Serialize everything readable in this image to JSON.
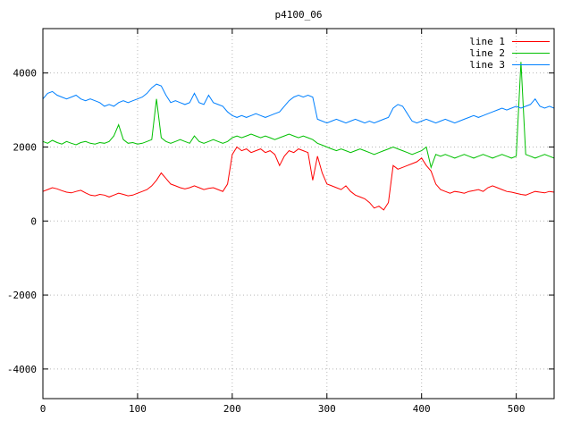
{
  "chart_data": {
    "type": "line",
    "title": "p4100_06",
    "xlabel": "",
    "ylabel": "",
    "xlim": [
      0,
      540
    ],
    "ylim": [
      -4800,
      5200
    ],
    "xticks": [
      0,
      100,
      200,
      300,
      400,
      500
    ],
    "yticks": [
      -4000,
      -2000,
      0,
      2000,
      4000
    ],
    "grid": true,
    "grid_style": "dotted",
    "legend_position": "top-right",
    "background_color": "#ffffff",
    "grid_color": "#b8b8b8",
    "axis_color": "#000000",
    "x": [
      0,
      5,
      10,
      15,
      20,
      25,
      30,
      35,
      40,
      45,
      50,
      55,
      60,
      65,
      70,
      75,
      80,
      85,
      90,
      95,
      100,
      105,
      110,
      115,
      120,
      125,
      130,
      135,
      140,
      145,
      150,
      155,
      160,
      165,
      170,
      175,
      180,
      185,
      190,
      195,
      200,
      205,
      210,
      215,
      220,
      225,
      230,
      235,
      240,
      245,
      250,
      255,
      260,
      265,
      270,
      275,
      280,
      285,
      290,
      295,
      300,
      305,
      310,
      315,
      320,
      325,
      330,
      335,
      340,
      345,
      350,
      355,
      360,
      365,
      370,
      375,
      380,
      385,
      390,
      395,
      400,
      405,
      410,
      415,
      420,
      425,
      430,
      435,
      440,
      445,
      450,
      455,
      460,
      465,
      470,
      475,
      480,
      485,
      490,
      495,
      500,
      505,
      510,
      515,
      520,
      525,
      530,
      535,
      540
    ],
    "series": [
      {
        "name": "line 1",
        "color": "#ff0000",
        "values": [
          800,
          850,
          900,
          870,
          820,
          780,
          760,
          800,
          830,
          760,
          700,
          680,
          720,
          700,
          650,
          700,
          750,
          720,
          680,
          700,
          750,
          800,
          850,
          950,
          1100,
          1300,
          1150,
          1000,
          950,
          900,
          870,
          900,
          950,
          900,
          850,
          880,
          900,
          850,
          800,
          1000,
          1800,
          2000,
          1900,
          1950,
          1850,
          1900,
          1950,
          1850,
          1900,
          1800,
          1500,
          1750,
          1900,
          1850,
          1950,
          1900,
          1850,
          1100,
          1750,
          1300,
          1000,
          950,
          900,
          850,
          950,
          800,
          700,
          650,
          600,
          500,
          350,
          400,
          300,
          500,
          1500,
          1400,
          1450,
          1500,
          1550,
          1600,
          1700,
          1500,
          1350,
          1000,
          850,
          800,
          750,
          800,
          780,
          750,
          800,
          820,
          850,
          800,
          900,
          950,
          900,
          850,
          800,
          780,
          750,
          720,
          700,
          750,
          800,
          780,
          760,
          800,
          780
        ]
      },
      {
        "name": "line 2",
        "color": "#00c000",
        "values": [
          2150,
          2100,
          2180,
          2120,
          2080,
          2150,
          2100,
          2060,
          2120,
          2150,
          2100,
          2080,
          2120,
          2100,
          2150,
          2300,
          2600,
          2200,
          2100,
          2120,
          2080,
          2100,
          2150,
          2200,
          3300,
          2250,
          2150,
          2100,
          2150,
          2200,
          2150,
          2100,
          2300,
          2150,
          2100,
          2150,
          2200,
          2150,
          2100,
          2150,
          2250,
          2300,
          2250,
          2300,
          2350,
          2300,
          2250,
          2300,
          2250,
          2200,
          2250,
          2300,
          2350,
          2300,
          2250,
          2300,
          2250,
          2200,
          2100,
          2050,
          2000,
          1950,
          1900,
          1950,
          1900,
          1850,
          1900,
          1950,
          1900,
          1850,
          1800,
          1850,
          1900,
          1950,
          2000,
          1950,
          1900,
          1850,
          1800,
          1850,
          1900,
          2000,
          1450,
          1800,
          1750,
          1800,
          1750,
          1700,
          1750,
          1800,
          1750,
          1700,
          1750,
          1800,
          1750,
          1700,
          1750,
          1800,
          1750,
          1700,
          1750,
          4300,
          1800,
          1750,
          1700,
          1750,
          1800,
          1750,
          1700
        ]
      },
      {
        "name": "line 3",
        "color": "#0080ff",
        "values": [
          3300,
          3450,
          3500,
          3400,
          3350,
          3300,
          3350,
          3400,
          3300,
          3250,
          3300,
          3250,
          3200,
          3100,
          3150,
          3100,
          3200,
          3250,
          3200,
          3250,
          3300,
          3350,
          3450,
          3600,
          3700,
          3650,
          3400,
          3200,
          3250,
          3200,
          3150,
          3200,
          3450,
          3200,
          3150,
          3400,
          3200,
          3150,
          3100,
          2950,
          2850,
          2800,
          2850,
          2800,
          2850,
          2900,
          2850,
          2800,
          2850,
          2900,
          2950,
          3100,
          3250,
          3350,
          3400,
          3350,
          3400,
          3350,
          2750,
          2700,
          2650,
          2700,
          2750,
          2700,
          2650,
          2700,
          2750,
          2700,
          2650,
          2700,
          2650,
          2700,
          2750,
          2800,
          3050,
          3150,
          3100,
          2900,
          2700,
          2650,
          2700,
          2750,
          2700,
          2650,
          2700,
          2750,
          2700,
          2650,
          2700,
          2750,
          2800,
          2850,
          2800,
          2850,
          2900,
          2950,
          3000,
          3050,
          3000,
          3050,
          3100,
          3050,
          3100,
          3150,
          3300,
          3100,
          3050,
          3100,
          3050
        ]
      }
    ]
  }
}
